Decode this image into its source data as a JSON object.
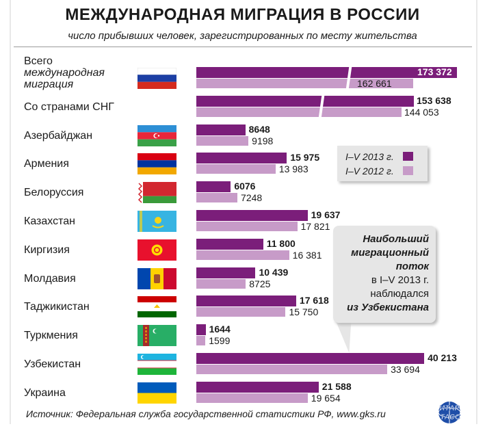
{
  "title": "МЕЖДУНАРОДНАЯ МИГРАЦИЯ В РОССИИ",
  "subtitle": "число прибывших человек, зарегистрированных по месту жительства",
  "legend": {
    "y2013": "I–V 2013 г.",
    "y2012": "I–V 2012 г."
  },
  "callout": {
    "line1": "Наибольший",
    "line2": "миграционный",
    "line3": "поток",
    "line4": "в I–V 2013 г.",
    "line5": "наблюдался",
    "line6": "из Узбекистана"
  },
  "source": "Источник: Федеральная служба государственной статистики РФ, www.gks.ru",
  "logo": {
    "top": "ИТАР",
    "bottom": "ТАСС"
  },
  "colors": {
    "y2013": "#7b1e7a",
    "y2012": "#c79bc8"
  },
  "rows": [
    {
      "label": "Всего",
      "label2": "международная",
      "label3": "миграция",
      "flag": "russia-flag",
      "v2013_text": "173 372",
      "v2012_text": "162 661"
    },
    {
      "label": "Со странами СНГ",
      "flag": "",
      "v2013_text": "153 638",
      "v2012_text": "144 053"
    },
    {
      "label": "Азербайджан",
      "flag": "azerbaijan-flag",
      "v2013_text": "8648",
      "v2012_text": "9198"
    },
    {
      "label": "Армения",
      "flag": "armenia-flag",
      "v2013_text": "15 975",
      "v2012_text": "13 983"
    },
    {
      "label": "Белоруссия",
      "flag": "belarus-flag",
      "v2013_text": "6076",
      "v2012_text": "7248"
    },
    {
      "label": "Казахстан",
      "flag": "kazakhstan-flag",
      "v2013_text": "19 637",
      "v2012_text": "17 821"
    },
    {
      "label": "Киргизия",
      "flag": "kyrgyzstan-flag",
      "v2013_text": "11 800",
      "v2012_text": "16 381"
    },
    {
      "label": "Молдавия",
      "flag": "moldova-flag",
      "v2013_text": "10 439",
      "v2012_text": "8725"
    },
    {
      "label": "Таджикистан",
      "flag": "tajikistan-flag",
      "v2013_text": "17 618",
      "v2012_text": "15 750"
    },
    {
      "label": "Туркмения",
      "flag": "turkmenistan-flag",
      "v2013_text": "1644",
      "v2012_text": "1599"
    },
    {
      "label": "Узбекистан",
      "flag": "uzbekistan-flag",
      "v2013_text": "40 213",
      "v2012_text": "33 694"
    },
    {
      "label": "Украина",
      "flag": "ukraine-flag",
      "v2013_text": "21 588",
      "v2012_text": "19 654"
    }
  ],
  "chart_data": {
    "type": "bar",
    "orientation": "horizontal",
    "title": "МЕЖДУНАРОДНАЯ МИГРАЦИЯ В РОССИИ",
    "subtitle": "число прибывших человек, зарегистрированных по месту жительства",
    "categories": [
      "Всего международная миграция",
      "Со странами СНГ",
      "Азербайджан",
      "Армения",
      "Белоруссия",
      "Казахстан",
      "Киргизия",
      "Молдавия",
      "Таджикистан",
      "Туркмения",
      "Узбекистан",
      "Украина"
    ],
    "series": [
      {
        "name": "I–V 2013 г.",
        "values": [
          173372,
          153638,
          8648,
          15975,
          6076,
          19637,
          11800,
          10439,
          17618,
          1644,
          40213,
          21588
        ]
      },
      {
        "name": "I–V 2012 г.",
        "values": [
          162661,
          144053,
          9198,
          13983,
          7248,
          17821,
          16381,
          8725,
          15750,
          1599,
          33694,
          19654
        ]
      }
    ],
    "axis_break": true
  }
}
